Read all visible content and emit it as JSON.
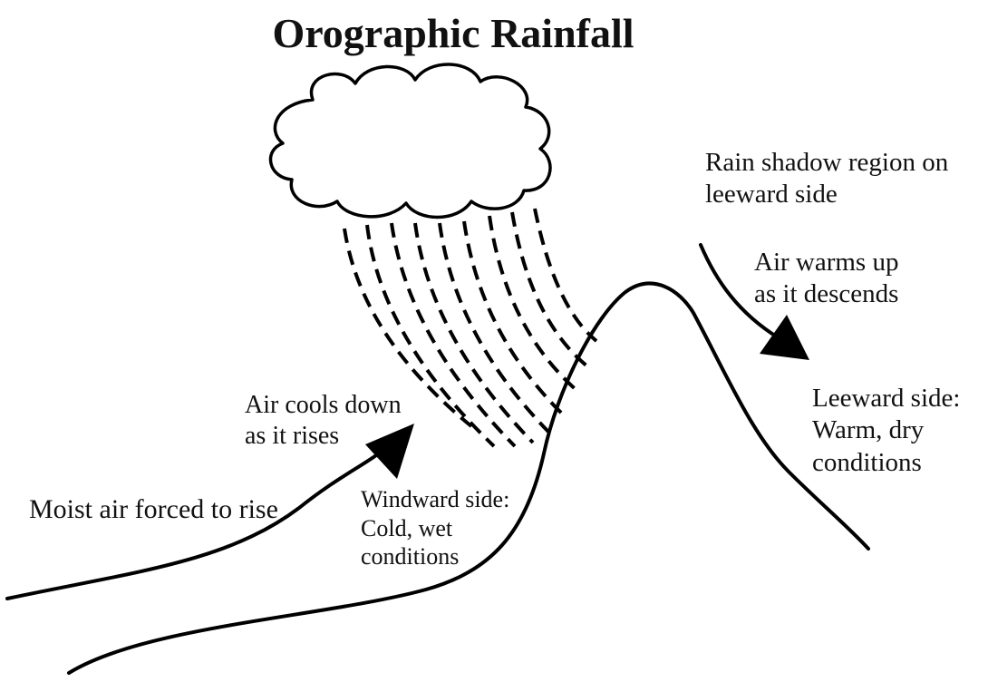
{
  "title": "Orographic Rainfall",
  "labels": {
    "moist_air": "Moist air forced to rise",
    "air_cools": [
      "Air cools down",
      "as it rises"
    ],
    "windward": [
      "Windward side:",
      "Cold, wet",
      "conditions"
    ],
    "rain_shadow": [
      "Rain shadow region on",
      "leeward side"
    ],
    "air_warms": [
      "Air warms up",
      "as it descends"
    ],
    "leeward": [
      "Leeward side:",
      "Warm, dry",
      "conditions"
    ]
  },
  "colors": {
    "stroke": "#000000",
    "text": "#111111",
    "background": "#ffffff"
  }
}
